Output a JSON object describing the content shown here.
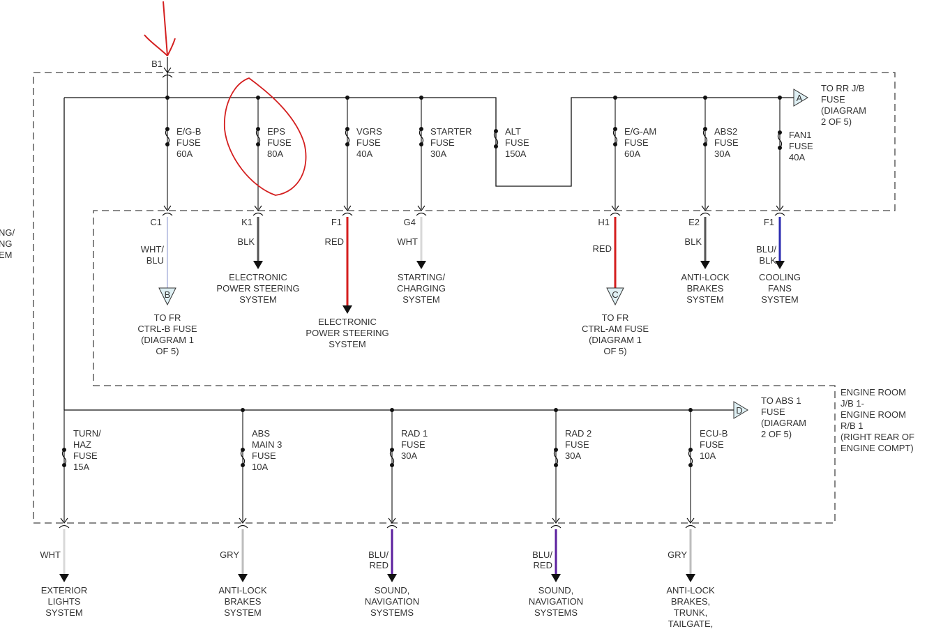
{
  "left_clipped_label": [
    "NG/",
    "NG",
    "EM"
  ],
  "source": {
    "connector": "B1"
  },
  "junction_block_label": [
    "ENGINE ROOM",
    "J/B 1-",
    "ENGINE ROOM",
    "R/B 1",
    "(RIGHT REAR OF",
    "ENGINE COMPT)"
  ],
  "connector_a": {
    "letter": "A",
    "label": [
      "TO RR J/B",
      "FUSE",
      "(DIAGRAM",
      "2 OF 5)"
    ]
  },
  "connector_d": {
    "letter": "D",
    "label": [
      "TO ABS 1",
      "FUSE",
      "(DIAGRAM",
      "2 OF 5)"
    ]
  },
  "alt_fuse": {
    "fuse": [
      "ALT",
      "FUSE",
      "150A"
    ]
  },
  "top_branches": [
    {
      "fuse": [
        "E/G-B",
        "FUSE",
        "60A"
      ],
      "connector": "C1",
      "wire": [
        "WHT/",
        "BLU"
      ],
      "wire_color": "#9aa3d6",
      "end": "triangle",
      "letter": "B",
      "dest": [
        "TO FR",
        "CTRL-B FUSE",
        "(DIAGRAM 1",
        "OF 5)"
      ]
    },
    {
      "fuse": [
        "EPS",
        "FUSE",
        "80A"
      ],
      "connector": "K1",
      "wire": [
        "BLK"
      ],
      "wire_color": "#555555",
      "end": "arrow",
      "dest": [
        "ELECTRONIC",
        "POWER STEERING",
        "SYSTEM"
      ]
    },
    {
      "fuse": [
        "VGRS",
        "FUSE",
        "40A"
      ],
      "connector": "F1",
      "wire": [
        "RED"
      ],
      "wire_color": "#d41e1e",
      "end": "arrow-long",
      "dest": [
        "ELECTRONIC",
        "POWER STEERING",
        "SYSTEM"
      ]
    },
    {
      "fuse": [
        "STARTER",
        "FUSE",
        "30A"
      ],
      "connector": "G4",
      "wire": [
        "WHT"
      ],
      "wire_color": "#d8d8d8",
      "end": "arrow",
      "dest": [
        "STARTING/",
        "CHARGING",
        "SYSTEM"
      ]
    },
    {
      "fuse": [
        "E/G-AM",
        "FUSE",
        "60A"
      ],
      "connector": "H1",
      "wire": [
        "RED"
      ],
      "wire_color": "#d41e1e",
      "end": "triangle",
      "letter": "C",
      "dest": [
        "TO FR",
        "CTRL-AM FUSE",
        "(DIAGRAM 1",
        "OF 5)"
      ]
    },
    {
      "fuse": [
        "ABS2",
        "FUSE",
        "30A"
      ],
      "connector": "E2",
      "wire": [
        "BLK"
      ],
      "wire_color": "#555555",
      "end": "arrow",
      "dest": [
        "ANTI-LOCK",
        "BRAKES",
        "SYSTEM"
      ]
    },
    {
      "fuse": [
        "FAN1",
        "FUSE",
        "40A"
      ],
      "connector": "F1",
      "wire": [
        "BLU/",
        "BLK"
      ],
      "wire_color": "#2b2bb0",
      "end": "arrow",
      "dest": [
        "COOLING",
        "FANS",
        "SYSTEM"
      ]
    }
  ],
  "bottom_branches": [
    {
      "fuse": [
        "TURN/",
        "HAZ",
        "FUSE",
        "15A"
      ],
      "wire": [
        "WHT"
      ],
      "wire_color": "#d8d8d8",
      "dest": [
        "EXTERIOR",
        "LIGHTS",
        "SYSTEM"
      ]
    },
    {
      "fuse": [
        "ABS",
        "MAIN 3",
        "FUSE",
        "10A"
      ],
      "wire": [
        "GRY"
      ],
      "wire_color": "#bdbdbd",
      "dest": [
        "ANTI-LOCK",
        "BRAKES",
        "SYSTEM"
      ]
    },
    {
      "fuse": [
        "RAD 1",
        "FUSE",
        "30A"
      ],
      "wire": [
        "BLU/",
        "RED"
      ],
      "wire_color": "#5b1f9e",
      "dest": [
        "SOUND,",
        "NAVIGATION",
        "SYSTEMS"
      ]
    },
    {
      "fuse": [
        "RAD 2",
        "FUSE",
        "30A"
      ],
      "wire": [
        "BLU/",
        "RED"
      ],
      "wire_color": "#5b1f9e",
      "dest": [
        "SOUND,",
        "NAVIGATION",
        "SYSTEMS"
      ]
    },
    {
      "fuse": [
        "ECU-B",
        "FUSE",
        "10A"
      ],
      "wire": [
        "GRY"
      ],
      "wire_color": "#bdbdbd",
      "dest": [
        "ANTI-LOCK",
        "BRAKES,",
        "TRUNK,",
        "TAILGATE,"
      ]
    }
  ],
  "annotation_color": "#d42020"
}
